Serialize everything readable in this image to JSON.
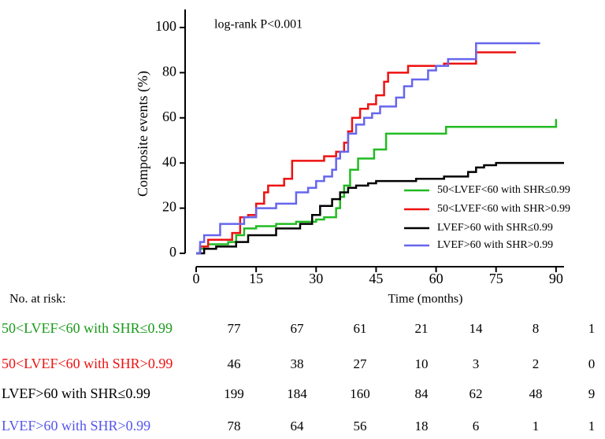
{
  "chart_data": {
    "type": "line",
    "step": true,
    "annotation": "log-rank P<0.001",
    "x_label": "Time (months)",
    "y_label": "Composite events (%)",
    "xlim": [
      0,
      92
    ],
    "ylim": [
      0,
      108
    ],
    "xticks": [
      0,
      15,
      30,
      45,
      60,
      75,
      90
    ],
    "yticks": [
      0,
      20,
      40,
      60,
      80,
      100
    ],
    "series": [
      {
        "name": "50<LVEF<60 with SHR≤0.99",
        "color": "#22bb22",
        "x": [
          0,
          1,
          2,
          3,
          5,
          8,
          10,
          12,
          15,
          20,
          25,
          30,
          32,
          35,
          36,
          37,
          38.5,
          40.5,
          44.5,
          47.5,
          62.5,
          90
        ],
        "values": [
          0,
          2,
          3,
          4,
          4,
          5,
          8,
          11,
          12,
          13,
          14,
          15,
          16,
          20,
          25,
          30,
          37,
          42,
          46,
          53,
          56,
          59.5
        ]
      },
      {
        "name": "50<LVEF<60 with SHR>0.99",
        "color": "#ee1111",
        "x": [
          0,
          1,
          3,
          9,
          11,
          13,
          15,
          17,
          18,
          22,
          24,
          30,
          32,
          35,
          37,
          38,
          39,
          41,
          43,
          45,
          47,
          48,
          53,
          62,
          70,
          80
        ],
        "values": [
          0,
          3,
          6,
          9,
          16,
          17,
          22,
          27,
          30,
          33,
          41,
          41,
          43,
          45,
          49,
          54,
          60,
          64,
          66,
          70,
          76,
          80,
          83,
          84,
          89,
          89
        ]
      },
      {
        "name": "LVEF>60 with SHR≤0.99",
        "color": "#000000",
        "x": [
          0,
          2,
          5,
          10,
          13,
          20,
          26,
          29,
          31,
          34,
          36,
          38,
          40,
          43,
          45,
          55,
          62,
          68,
          70,
          72,
          75,
          92
        ],
        "values": [
          0,
          2,
          3,
          5,
          8,
          11,
          13,
          17,
          21,
          24,
          27,
          29,
          30,
          31,
          32,
          33,
          34,
          36,
          38,
          39,
          40,
          40
        ]
      },
      {
        "name": "LVEF>60 with SHR>0.99",
        "color": "#6666ee",
        "x": [
          0,
          1,
          2,
          6,
          10,
          12,
          15,
          20,
          25,
          28,
          30,
          32,
          34,
          35,
          36,
          38,
          40,
          42,
          44,
          46,
          50,
          52,
          54,
          58,
          60,
          63,
          70,
          86
        ],
        "values": [
          0,
          5,
          8,
          13,
          13,
          16,
          20,
          22,
          27,
          29,
          32,
          34,
          37,
          42,
          45,
          53,
          57,
          60,
          62,
          65,
          69,
          74,
          77,
          81,
          83,
          86,
          93,
          93
        ]
      }
    ],
    "risk_table_title": "No. at risk:",
    "risk_table_colors": [
      "#1a9a1a",
      "#ee1111",
      "#000000",
      "#5555ee"
    ],
    "risk_table": [
      [
        77,
        67,
        61,
        21,
        14,
        8,
        1
      ],
      [
        46,
        38,
        27,
        10,
        3,
        2,
        0
      ],
      [
        199,
        184,
        160,
        84,
        62,
        48,
        9
      ],
      [
        78,
        64,
        56,
        18,
        6,
        1,
        1
      ]
    ]
  }
}
